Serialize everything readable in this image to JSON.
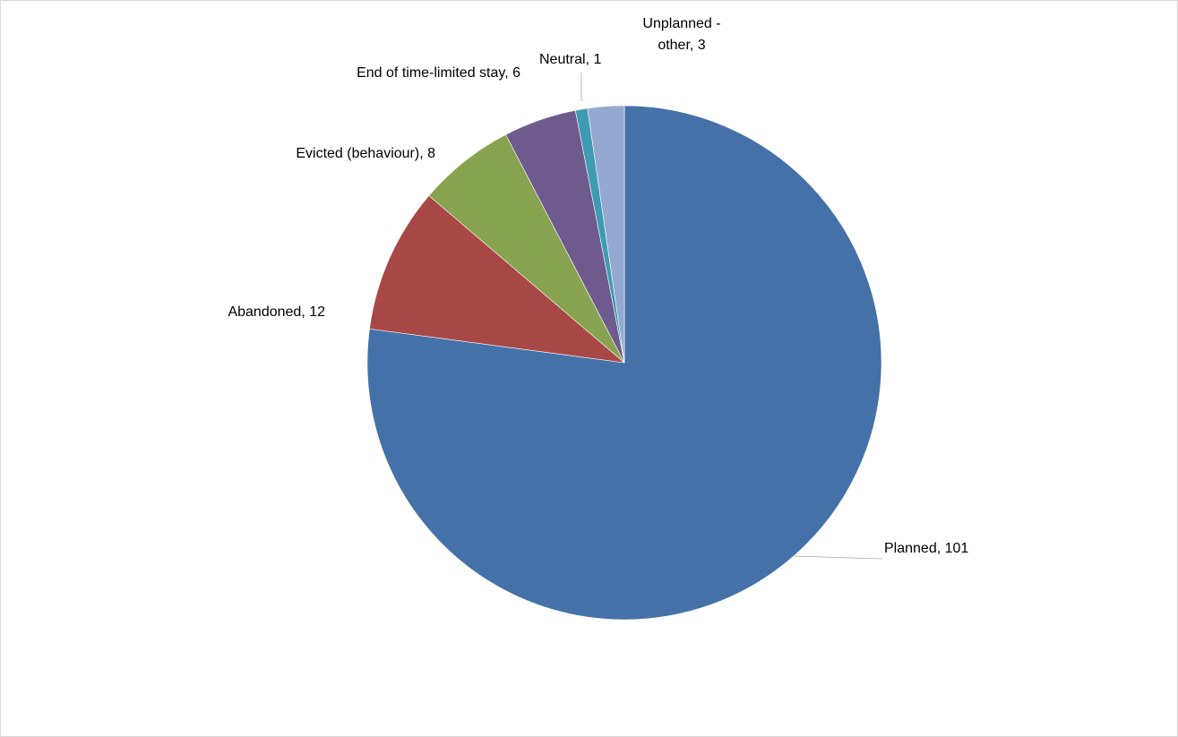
{
  "chart_data": {
    "type": "pie",
    "title": "",
    "start_angle": "12 o'clock",
    "direction": "clockwise",
    "legend": "none",
    "slices": [
      {
        "label": "Planned",
        "value": 101,
        "color": "#4472a8",
        "label_text": "Planned, 101"
      },
      {
        "label": "Abandoned",
        "value": 12,
        "color": "#a84846",
        "label_text": "Abandoned, 12"
      },
      {
        "label": "Evicted (behaviour)",
        "value": 8,
        "color": "#88a34f",
        "label_text": "Evicted (behaviour), 8"
      },
      {
        "label": "End of time-limited stay",
        "value": 6,
        "color": "#6f5a8d",
        "label_text": "End of time-limited stay, 6"
      },
      {
        "label": "Neutral",
        "value": 1,
        "color": "#3f9bb1",
        "label_text": "Neutral, 1"
      },
      {
        "label": "Unplanned - other",
        "value": 3,
        "color": "#93a9d1",
        "label_text_lines": [
          "Unplanned -",
          "other, 3"
        ]
      }
    ]
  }
}
